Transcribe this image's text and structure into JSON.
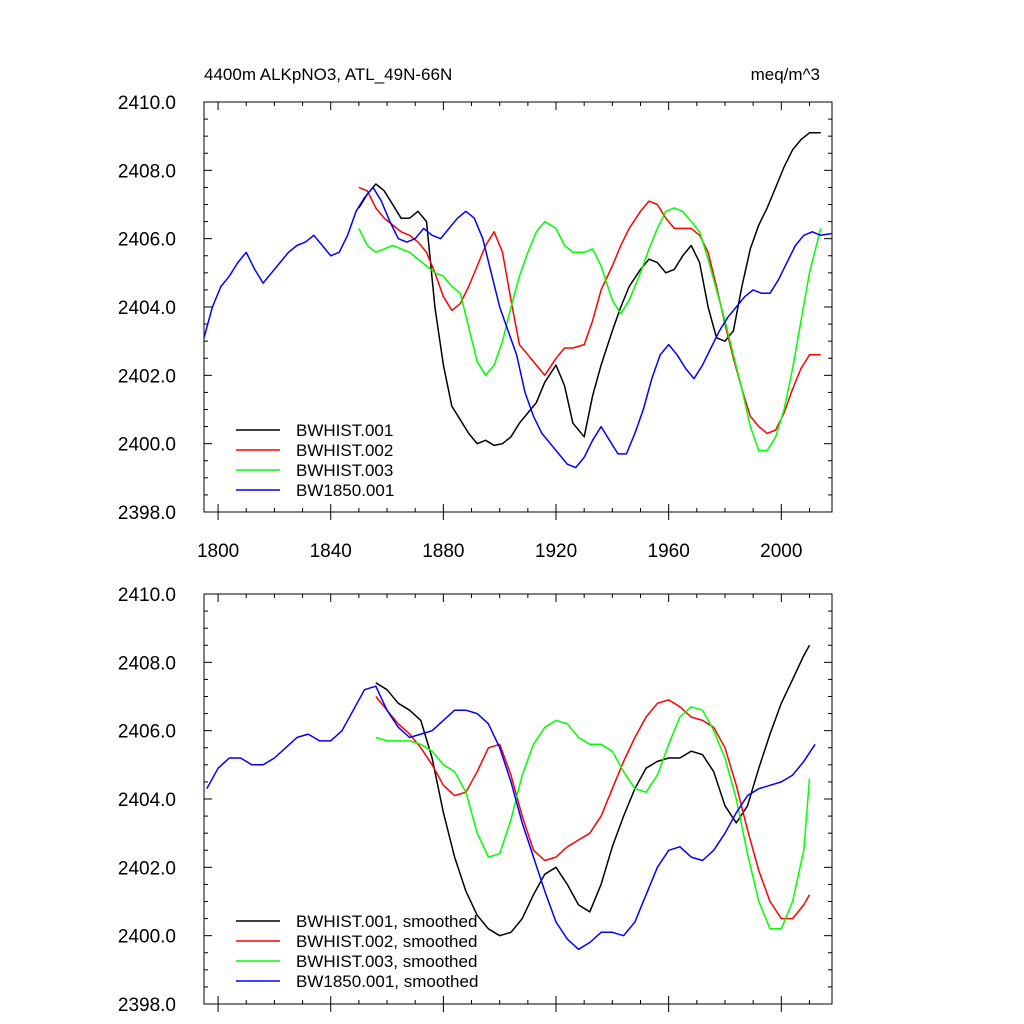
{
  "header": {
    "title": "4400m ALKpNO3, ATL_49N-66N",
    "units": "meq/m^3"
  },
  "chart_data": [
    {
      "type": "line",
      "panel": "top",
      "xlim": [
        1795,
        2018
      ],
      "ylim": [
        2398.0,
        2410.0
      ],
      "x_ticks": [
        1800,
        1840,
        1880,
        1920,
        1960,
        2000
      ],
      "x_tick_labels": [
        "1800",
        "1840",
        "1880",
        "1920",
        "1960",
        "2000"
      ],
      "y_ticks": [
        2398,
        2400,
        2402,
        2404,
        2406,
        2408,
        2410
      ],
      "y_tick_labels": [
        "2398.0",
        "2400.0",
        "2402.0",
        "2404.0",
        "2406.0",
        "2408.0",
        "2410.0"
      ],
      "legend": "bottom-left",
      "series": [
        {
          "name": "BWHIST.001",
          "color": "#000000",
          "x": [
            1850,
            1853,
            1856,
            1859,
            1862,
            1865,
            1868,
            1871,
            1874,
            1877,
            1880,
            1883,
            1886,
            1889,
            1892,
            1895,
            1898,
            1901,
            1904,
            1907,
            1910,
            1913,
            1916,
            1920,
            1923,
            1926,
            1930,
            1933,
            1936,
            1940,
            1943,
            1946,
            1950,
            1953,
            1956,
            1959,
            1962,
            1965,
            1968,
            1971,
            1974,
            1977,
            1980,
            1983,
            1986,
            1989,
            1992,
            1995,
            1998,
            2001,
            2004,
            2007,
            2010,
            2014
          ],
          "y": [
            2406.9,
            2407.3,
            2407.6,
            2407.4,
            2407.0,
            2406.6,
            2406.6,
            2406.8,
            2406.5,
            2404.0,
            2402.3,
            2401.1,
            2400.7,
            2400.3,
            2400.0,
            2400.1,
            2399.95,
            2400.0,
            2400.2,
            2400.6,
            2400.9,
            2401.2,
            2401.8,
            2402.3,
            2401.7,
            2400.6,
            2400.2,
            2401.4,
            2402.3,
            2403.3,
            2404.0,
            2404.6,
            2405.1,
            2405.4,
            2405.3,
            2405.0,
            2405.1,
            2405.5,
            2405.8,
            2405.3,
            2404.0,
            2403.1,
            2403.0,
            2403.3,
            2404.6,
            2405.7,
            2406.4,
            2406.9,
            2407.5,
            2408.1,
            2408.6,
            2408.9,
            2409.1,
            2409.1
          ]
        },
        {
          "name": "BWHIST.002",
          "color": "#ff0000",
          "x": [
            1850,
            1853,
            1856,
            1859,
            1862,
            1865,
            1868,
            1871,
            1874,
            1877,
            1880,
            1883,
            1886,
            1889,
            1892,
            1895,
            1898,
            1901,
            1904,
            1907,
            1910,
            1913,
            1916,
            1920,
            1923,
            1926,
            1930,
            1933,
            1936,
            1940,
            1943,
            1946,
            1950,
            1953,
            1956,
            1959,
            1962,
            1965,
            1968,
            1971,
            1974,
            1977,
            1980,
            1983,
            1986,
            1989,
            1992,
            1995,
            1998,
            2001,
            2004,
            2007,
            2010,
            2014
          ],
          "y": [
            2407.5,
            2407.4,
            2406.9,
            2406.6,
            2406.4,
            2406.2,
            2406.1,
            2405.9,
            2405.6,
            2405.0,
            2404.3,
            2403.9,
            2404.1,
            2404.6,
            2405.2,
            2405.8,
            2406.2,
            2405.6,
            2404.2,
            2402.9,
            2402.6,
            2402.3,
            2402.0,
            2402.5,
            2402.8,
            2402.8,
            2402.9,
            2403.6,
            2404.5,
            2405.2,
            2405.8,
            2406.3,
            2406.8,
            2407.1,
            2407.0,
            2406.6,
            2406.3,
            2406.3,
            2406.3,
            2406.1,
            2405.6,
            2404.6,
            2403.5,
            2402.5,
            2401.6,
            2400.8,
            2400.5,
            2400.3,
            2400.4,
            2400.9,
            2401.6,
            2402.2,
            2402.6,
            2402.6
          ]
        },
        {
          "name": "BWHIST.003",
          "color": "#00ff00",
          "x": [
            1850,
            1853,
            1856,
            1859,
            1862,
            1865,
            1868,
            1871,
            1874,
            1877,
            1880,
            1883,
            1886,
            1889,
            1892,
            1895,
            1898,
            1901,
            1904,
            1907,
            1910,
            1913,
            1916,
            1920,
            1923,
            1926,
            1930,
            1933,
            1936,
            1940,
            1943,
            1946,
            1950,
            1953,
            1956,
            1959,
            1962,
            1965,
            1968,
            1971,
            1974,
            1977,
            1980,
            1983,
            1986,
            1989,
            1992,
            1995,
            1998,
            2001,
            2004,
            2007,
            2010,
            2014
          ],
          "y": [
            2406.3,
            2405.8,
            2405.6,
            2405.7,
            2405.8,
            2405.7,
            2405.6,
            2405.4,
            2405.2,
            2405.0,
            2404.9,
            2404.6,
            2404.4,
            2403.4,
            2402.4,
            2402.0,
            2402.3,
            2403.0,
            2404.0,
            2404.9,
            2405.6,
            2406.2,
            2406.5,
            2406.3,
            2405.8,
            2405.6,
            2405.6,
            2405.7,
            2405.2,
            2404.2,
            2403.8,
            2404.2,
            2405.0,
            2405.7,
            2406.3,
            2406.8,
            2406.9,
            2406.8,
            2406.5,
            2406.2,
            2405.4,
            2404.5,
            2403.6,
            2402.6,
            2401.6,
            2400.5,
            2399.8,
            2399.8,
            2400.2,
            2401.0,
            2402.2,
            2403.6,
            2405.0,
            2406.3
          ]
        },
        {
          "name": "BW1850.001",
          "color": "#0000ff",
          "x": [
            1795,
            1798,
            1801,
            1804,
            1807,
            1810,
            1813,
            1816,
            1819,
            1822,
            1825,
            1828,
            1831,
            1834,
            1837,
            1840,
            1843,
            1846,
            1849,
            1852,
            1855,
            1858,
            1861,
            1864,
            1867,
            1870,
            1873,
            1876,
            1879,
            1882,
            1885,
            1888,
            1891,
            1894,
            1897,
            1900,
            1903,
            1906,
            1909,
            1912,
            1915,
            1918,
            1921,
            1924,
            1927,
            1930,
            1933,
            1936,
            1939,
            1942,
            1945,
            1948,
            1951,
            1954,
            1957,
            1960,
            1963,
            1966,
            1969,
            1972,
            1975,
            1978,
            1981,
            1984,
            1987,
            1990,
            1993,
            1996,
            1999,
            2002,
            2005,
            2008,
            2011,
            2014,
            2018
          ],
          "y": [
            2403.1,
            2404.0,
            2404.6,
            2404.9,
            2405.3,
            2405.6,
            2405.1,
            2404.7,
            2405.0,
            2405.3,
            2405.6,
            2405.8,
            2405.9,
            2406.1,
            2405.8,
            2405.5,
            2405.6,
            2406.1,
            2406.8,
            2407.2,
            2407.5,
            2407.1,
            2406.5,
            2406.0,
            2405.9,
            2406.0,
            2406.3,
            2406.1,
            2406.0,
            2406.3,
            2406.6,
            2406.8,
            2406.6,
            2406.0,
            2405.0,
            2404.0,
            2403.3,
            2402.6,
            2401.5,
            2400.8,
            2400.3,
            2400.0,
            2399.7,
            2399.4,
            2399.3,
            2399.6,
            2400.1,
            2400.5,
            2400.1,
            2399.7,
            2399.7,
            2400.3,
            2401.0,
            2401.9,
            2402.6,
            2402.9,
            2402.6,
            2402.2,
            2401.9,
            2402.3,
            2402.8,
            2403.3,
            2403.7,
            2404.0,
            2404.3,
            2404.5,
            2404.4,
            2404.4,
            2404.8,
            2405.3,
            2405.8,
            2406.1,
            2406.2,
            2406.1,
            2406.15
          ]
        }
      ]
    },
    {
      "type": "line",
      "panel": "bottom",
      "xlim": [
        1795,
        2018
      ],
      "ylim": [
        2398.0,
        2410.0
      ],
      "x_ticks": [
        1800,
        1840,
        1880,
        1920,
        1960,
        2000
      ],
      "y_ticks": [
        2398,
        2400,
        2402,
        2404,
        2406,
        2408,
        2410
      ],
      "y_tick_labels": [
        "2398.0",
        "2400.0",
        "2402.0",
        "2404.0",
        "2406.0",
        "2408.0",
        "2410.0"
      ],
      "legend": "bottom-left",
      "series": [
        {
          "name": "BWHIST.001, smoothed",
          "color": "#000000",
          "x": [
            1856,
            1860,
            1864,
            1868,
            1872,
            1876,
            1880,
            1884,
            1888,
            1892,
            1896,
            1900,
            1904,
            1908,
            1912,
            1916,
            1920,
            1924,
            1928,
            1932,
            1936,
            1940,
            1944,
            1948,
            1952,
            1956,
            1960,
            1964,
            1968,
            1972,
            1976,
            1980,
            1984,
            1988,
            1992,
            1996,
            2000,
            2004,
            2008,
            2010
          ],
          "y": [
            2407.4,
            2407.2,
            2406.8,
            2406.6,
            2406.3,
            2405.2,
            2403.6,
            2402.3,
            2401.3,
            2400.6,
            2400.2,
            2400.0,
            2400.1,
            2400.5,
            2401.2,
            2401.8,
            2402.0,
            2401.5,
            2400.9,
            2400.7,
            2401.5,
            2402.6,
            2403.5,
            2404.3,
            2404.9,
            2405.1,
            2405.2,
            2405.2,
            2405.4,
            2405.3,
            2404.8,
            2403.8,
            2403.3,
            2403.8,
            2404.9,
            2405.9,
            2406.8,
            2407.5,
            2408.2,
            2408.5
          ]
        },
        {
          "name": "BWHIST.002, smoothed",
          "color": "#ff0000",
          "x": [
            1856,
            1860,
            1864,
            1868,
            1872,
            1876,
            1880,
            1884,
            1888,
            1892,
            1896,
            1900,
            1904,
            1908,
            1912,
            1916,
            1920,
            1924,
            1928,
            1932,
            1936,
            1940,
            1944,
            1948,
            1952,
            1956,
            1960,
            1964,
            1968,
            1972,
            1976,
            1980,
            1984,
            1988,
            1992,
            1996,
            2000,
            2004,
            2008,
            2010
          ],
          "y": [
            2407.0,
            2406.6,
            2406.2,
            2405.9,
            2405.5,
            2405.0,
            2404.4,
            2404.1,
            2404.2,
            2404.8,
            2405.5,
            2405.6,
            2404.7,
            2403.5,
            2402.5,
            2402.2,
            2402.3,
            2402.6,
            2402.8,
            2403.0,
            2403.5,
            2404.3,
            2405.1,
            2405.8,
            2406.4,
            2406.8,
            2406.9,
            2406.7,
            2406.4,
            2406.3,
            2406.1,
            2405.5,
            2404.4,
            2403.1,
            2401.9,
            2401.0,
            2400.5,
            2400.5,
            2400.9,
            2401.2
          ]
        },
        {
          "name": "BWHIST.003, smoothed",
          "color": "#00ff00",
          "x": [
            1856,
            1860,
            1864,
            1868,
            1872,
            1876,
            1880,
            1884,
            1888,
            1892,
            1896,
            1900,
            1904,
            1908,
            1912,
            1916,
            1920,
            1924,
            1928,
            1932,
            1936,
            1940,
            1944,
            1948,
            1952,
            1956,
            1960,
            1964,
            1968,
            1972,
            1976,
            1980,
            1984,
            1988,
            1992,
            1996,
            2000,
            2004,
            2008,
            2010
          ],
          "y": [
            2405.8,
            2405.7,
            2405.7,
            2405.7,
            2405.6,
            2405.4,
            2405.0,
            2404.8,
            2404.2,
            2403.0,
            2402.3,
            2402.4,
            2403.4,
            2404.7,
            2405.6,
            2406.1,
            2406.3,
            2406.2,
            2405.8,
            2405.6,
            2405.6,
            2405.4,
            2404.8,
            2404.3,
            2404.2,
            2404.7,
            2405.6,
            2406.4,
            2406.7,
            2406.6,
            2406.0,
            2405.2,
            2404.0,
            2402.4,
            2401.0,
            2400.2,
            2400.2,
            2401.0,
            2402.5,
            2404.6
          ]
        },
        {
          "name": "BW1850.001, smoothed",
          "color": "#0000ff",
          "x": [
            1796,
            1800,
            1804,
            1808,
            1812,
            1816,
            1820,
            1824,
            1828,
            1832,
            1836,
            1840,
            1844,
            1848,
            1852,
            1856,
            1860,
            1864,
            1868,
            1872,
            1876,
            1880,
            1884,
            1888,
            1892,
            1896,
            1900,
            1904,
            1908,
            1912,
            1916,
            1920,
            1924,
            1928,
            1932,
            1936,
            1940,
            1944,
            1948,
            1952,
            1956,
            1960,
            1964,
            1968,
            1972,
            1976,
            1980,
            1984,
            1988,
            1992,
            1996,
            2000,
            2004,
            2008,
            2012
          ],
          "y": [
            2404.3,
            2404.9,
            2405.2,
            2405.2,
            2405.0,
            2405.0,
            2405.2,
            2405.5,
            2405.8,
            2405.9,
            2405.7,
            2405.7,
            2406.0,
            2406.6,
            2407.2,
            2407.3,
            2406.6,
            2406.1,
            2405.8,
            2405.9,
            2406.0,
            2406.3,
            2406.6,
            2406.6,
            2406.5,
            2406.2,
            2405.5,
            2404.5,
            2403.3,
            2402.3,
            2401.3,
            2400.4,
            2399.9,
            2399.6,
            2399.8,
            2400.1,
            2400.1,
            2400.0,
            2400.4,
            2401.2,
            2402.0,
            2402.5,
            2402.6,
            2402.3,
            2402.2,
            2402.5,
            2403.0,
            2403.6,
            2404.1,
            2404.3,
            2404.4,
            2404.5,
            2404.7,
            2405.1,
            2405.6
          ]
        }
      ]
    }
  ]
}
